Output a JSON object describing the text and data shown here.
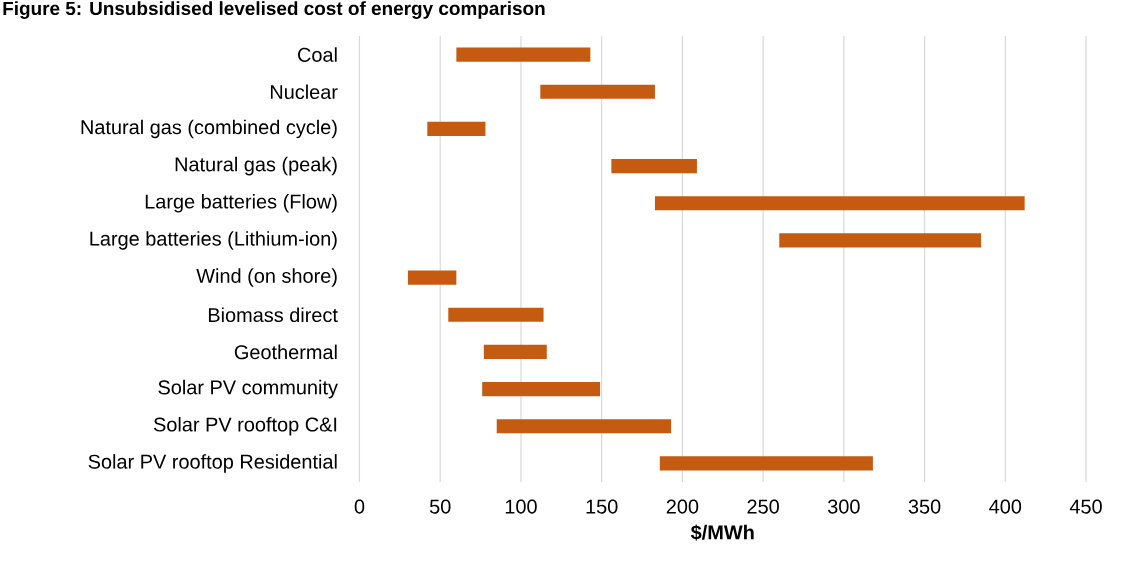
{
  "chart_data": {
    "type": "bar",
    "orientation": "horizontal",
    "title": "Figure 5: Unsubsidised levelised cost of energy comparison",
    "xlabel": "$/MWh",
    "categories": [
      "Coal",
      "Nuclear",
      "Natural gas (combined cycle)",
      "Natural gas (peak)",
      "Large batteries (Flow)",
      "Large batteries (Lithium-ion)",
      "Wind (on shore)",
      "Biomass direct",
      "Geothermal",
      "Solar PV community",
      "Solar PV rooftop C&I",
      "Solar PV rooftop Residential"
    ],
    "base": [
      60,
      112,
      42,
      156,
      183,
      260,
      30,
      55,
      77,
      76,
      85,
      186
    ],
    "values": [
      83,
      71,
      36,
      53,
      229,
      125,
      30,
      59,
      39,
      73,
      108,
      132
    ],
    "color": "#c55a11",
    "xlim": [
      0,
      450
    ],
    "xticks": [
      0,
      50,
      100,
      150,
      200,
      250,
      300,
      350,
      400,
      450
    ],
    "grid": "x"
  }
}
